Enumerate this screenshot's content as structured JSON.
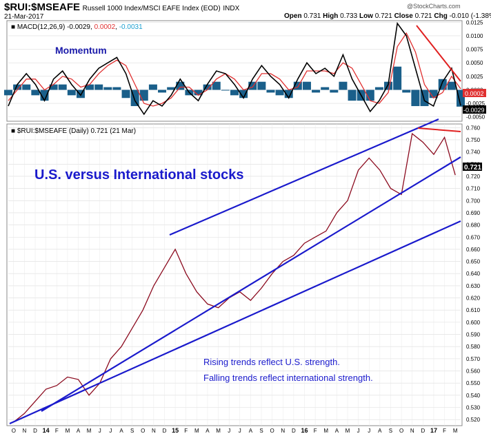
{
  "header": {
    "symbol": "$RUI:$MSEAFE",
    "description": "Russell 1000 Index/MSCI EAFE Index (EOD)",
    "exchange": "INDX",
    "date": "21-Mar-2017",
    "logo": "@StockCharts.com",
    "open_label": "Open",
    "open": "0.731",
    "high_label": "High",
    "high": "0.733",
    "low_label": "Low",
    "low": "0.721",
    "close_label": "Close",
    "close": "0.721",
    "chg_label": "Chg",
    "chg": "-0.010 (-1.38%)"
  },
  "macd_panel": {
    "label_prefix": "■ MACD(12,26,9)",
    "macd_value": "-0.0029",
    "signal_value": "0.0002",
    "hist_value": "-0.0031",
    "annotation": "Momentum",
    "last_signal_tag": "0.0002",
    "last_macd_tag": "-0.0029",
    "colors": {
      "macd": "#000000",
      "signal": "#e03030",
      "histogram": "#1a5f8a",
      "annotation": "#1a1aaa"
    }
  },
  "price_panel": {
    "label": "■ $RUI:$MSEAFE (Daily) 0.721 (21 Mar)",
    "last_price_tag": "0.721",
    "title_annotation": "U.S. versus International stocks",
    "note_line1": "Rising trends reflect U.S. strength.",
    "note_line2": "Falling trends reflect international strength.",
    "colors": {
      "price": "#8b0a1e",
      "trendline": "#1a1acc",
      "resistance": "#e02020"
    }
  },
  "chart_data": [
    {
      "type": "line",
      "name": "MACD",
      "yticks": [
        "0.0125",
        "0.0100",
        "0.0075",
        "0.0050",
        "0.0025",
        "0.0000",
        "-0.0025",
        "-0.0050"
      ],
      "ylim": [
        -0.0058,
        0.0128
      ],
      "series": [
        {
          "name": "MACD",
          "x": [
            0,
            2,
            4,
            6,
            8,
            10,
            12,
            14,
            16,
            18,
            20,
            22,
            24,
            26,
            28,
            30,
            32,
            34,
            36,
            38,
            40,
            42,
            44,
            46,
            48,
            50,
            52,
            54,
            56,
            58,
            60,
            62,
            64,
            66,
            68,
            70,
            72,
            74,
            76,
            78,
            80,
            82,
            84,
            86,
            88,
            90,
            92,
            94,
            96,
            98,
            100
          ],
          "values": [
            -0.003,
            0.001,
            0.003,
            0.001,
            -0.002,
            0.002,
            0.0035,
            0.001,
            -0.001,
            0.002,
            0.004,
            0.005,
            0.006,
            0.003,
            -0.002,
            -0.0045,
            -0.002,
            -0.003,
            -0.001,
            0.002,
            -0.0005,
            -0.002,
            0.001,
            0.0035,
            0.003,
            0.001,
            -0.0015,
            0.002,
            0.0045,
            0.0025,
            0.001,
            -0.0015,
            0.002,
            0.005,
            0.003,
            0.004,
            0.0025,
            0.0065,
            0.002,
            -0.001,
            -0.004,
            -0.002,
            0.001,
            0.0123,
            0.01,
            0.004,
            -0.002,
            -0.003,
            0.0015,
            0.004,
            -0.0029
          ]
        },
        {
          "name": "Signal",
          "x": [
            0,
            2,
            4,
            6,
            8,
            10,
            12,
            14,
            16,
            18,
            20,
            22,
            24,
            26,
            28,
            30,
            32,
            34,
            36,
            38,
            40,
            42,
            44,
            46,
            48,
            50,
            52,
            54,
            56,
            58,
            60,
            62,
            64,
            66,
            68,
            70,
            72,
            74,
            76,
            78,
            80,
            82,
            84,
            86,
            88,
            90,
            92,
            94,
            96,
            98,
            100
          ],
          "values": [
            -0.002,
            0.0,
            0.002,
            0.002,
            0.0,
            0.001,
            0.0025,
            0.002,
            0.0005,
            0.001,
            0.003,
            0.0045,
            0.0055,
            0.0045,
            0.001,
            -0.0025,
            -0.003,
            -0.0025,
            -0.0015,
            0.0005,
            0.0005,
            -0.001,
            0.0,
            0.002,
            0.003,
            0.002,
            0.0,
            0.0005,
            0.003,
            0.003,
            0.002,
            0.0,
            0.0005,
            0.0035,
            0.0035,
            0.0035,
            0.003,
            0.005,
            0.004,
            0.001,
            -0.002,
            -0.0025,
            -0.0005,
            0.008,
            0.0105,
            0.007,
            0.001,
            -0.0015,
            -0.0005,
            0.0025,
            0.0002
          ]
        }
      ]
    },
    {
      "type": "line",
      "name": "$RUI:$MSEAFE",
      "xlabels": [
        "O",
        "N",
        "D",
        "14",
        "F",
        "M",
        "A",
        "M",
        "J",
        "J",
        "A",
        "S",
        "O",
        "N",
        "D",
        "15",
        "F",
        "M",
        "A",
        "M",
        "J",
        "J",
        "A",
        "S",
        "O",
        "N",
        "D",
        "16",
        "F",
        "M",
        "A",
        "M",
        "J",
        "J",
        "A",
        "S",
        "O",
        "N",
        "D",
        "17",
        "F",
        "M"
      ],
      "yticks": [
        "0.760",
        "0.750",
        "0.740",
        "0.730",
        "0.720",
        "0.710",
        "0.700",
        "0.690",
        "0.680",
        "0.670",
        "0.660",
        "0.650",
        "0.640",
        "0.630",
        "0.620",
        "0.610",
        "0.600",
        "0.590",
        "0.580",
        "0.570",
        "0.560",
        "0.550",
        "0.540",
        "0.530",
        "0.520"
      ],
      "ylim": [
        0.515,
        0.763
      ],
      "series": [
        {
          "name": "$RUI:$MSEAFE",
          "x": [
            0,
            1,
            2,
            3,
            4,
            5,
            6,
            7,
            8,
            9,
            10,
            11,
            12,
            13,
            14,
            15,
            16,
            17,
            18,
            19,
            20,
            21,
            22,
            23,
            24,
            25,
            26,
            27,
            28,
            29,
            30,
            31,
            32,
            33,
            34,
            35,
            36,
            37,
            38,
            39,
            40,
            41
          ],
          "values": [
            0.518,
            0.525,
            0.535,
            0.545,
            0.548,
            0.555,
            0.553,
            0.54,
            0.55,
            0.57,
            0.58,
            0.595,
            0.61,
            0.63,
            0.645,
            0.66,
            0.64,
            0.625,
            0.615,
            0.612,
            0.62,
            0.625,
            0.618,
            0.628,
            0.64,
            0.65,
            0.655,
            0.665,
            0.67,
            0.675,
            0.69,
            0.7,
            0.725,
            0.735,
            0.725,
            0.71,
            0.705,
            0.755,
            0.748,
            0.738,
            0.752,
            0.721
          ]
        }
      ]
    }
  ]
}
